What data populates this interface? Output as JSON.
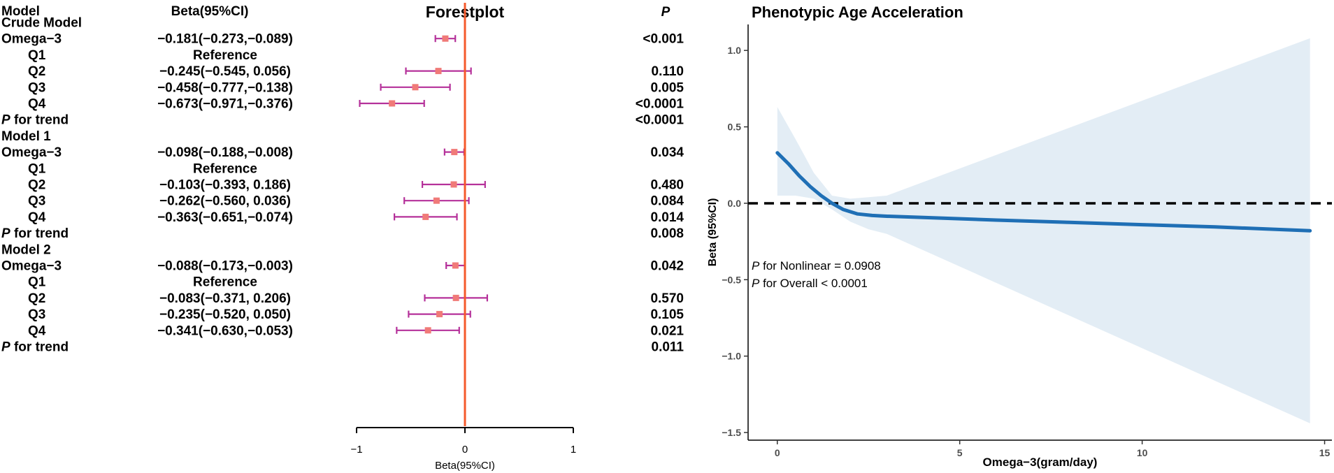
{
  "chart_data": [
    {
      "type": "forest",
      "title": "Forestplot",
      "headers": {
        "model": "Model",
        "beta": "Beta(95%CI)",
        "p": "P"
      },
      "rows": [
        {
          "label": "Crude Model",
          "kind": "group"
        },
        {
          "label": "Omega−3",
          "kind": "main",
          "text": "−0.181(−0.273,−0.089)",
          "p": "<0.001",
          "est": -0.181,
          "lo": -0.273,
          "hi": -0.089
        },
        {
          "label": "Q1",
          "kind": "sub",
          "text": "Reference",
          "p": ""
        },
        {
          "label": "Q2",
          "kind": "sub",
          "text": "−0.245(−0.545, 0.056)",
          "p": "0.110",
          "est": -0.245,
          "lo": -0.545,
          "hi": 0.056
        },
        {
          "label": "Q3",
          "kind": "sub",
          "text": "−0.458(−0.777,−0.138)",
          "p": "0.005",
          "est": -0.458,
          "lo": -0.777,
          "hi": -0.138
        },
        {
          "label": "Q4",
          "kind": "sub",
          "text": "−0.673(−0.971,−0.376)",
          "p": "<0.0001",
          "est": -0.673,
          "lo": -0.971,
          "hi": -0.376
        },
        {
          "label_italic": "P",
          "label": " for trend",
          "kind": "trend",
          "text": "",
          "p": "<0.0001"
        },
        {
          "label": "Model 1",
          "kind": "group"
        },
        {
          "label": "Omega−3",
          "kind": "main",
          "text": "−0.098(−0.188,−0.008)",
          "p": "0.034",
          "est": -0.098,
          "lo": -0.188,
          "hi": -0.008
        },
        {
          "label": "Q1",
          "kind": "sub",
          "text": "Reference",
          "p": ""
        },
        {
          "label": "Q2",
          "kind": "sub",
          "text": "−0.103(−0.393, 0.186)",
          "p": "0.480",
          "est": -0.103,
          "lo": -0.393,
          "hi": 0.186
        },
        {
          "label": "Q3",
          "kind": "sub",
          "text": "−0.262(−0.560, 0.036)",
          "p": "0.084",
          "est": -0.262,
          "lo": -0.56,
          "hi": 0.036
        },
        {
          "label": "Q4",
          "kind": "sub",
          "text": "−0.363(−0.651,−0.074)",
          "p": "0.014",
          "est": -0.363,
          "lo": -0.651,
          "hi": -0.074
        },
        {
          "label_italic": "P",
          "label": " for trend",
          "kind": "trend",
          "text": "",
          "p": "0.008"
        },
        {
          "label": "Model 2",
          "kind": "group"
        },
        {
          "label": "Omega−3",
          "kind": "main",
          "text": "−0.088(−0.173,−0.003)",
          "p": "0.042",
          "est": -0.088,
          "lo": -0.173,
          "hi": -0.003
        },
        {
          "label": "Q1",
          "kind": "sub",
          "text": "Reference",
          "p": ""
        },
        {
          "label": "Q2",
          "kind": "sub",
          "text": "−0.083(−0.371, 0.206)",
          "p": "0.570",
          "est": -0.083,
          "lo": -0.371,
          "hi": 0.206
        },
        {
          "label": "Q3",
          "kind": "sub",
          "text": "−0.235(−0.520, 0.050)",
          "p": "0.105",
          "est": -0.235,
          "lo": -0.52,
          "hi": 0.05
        },
        {
          "label": "Q4",
          "kind": "sub",
          "text": "−0.341(−0.630,−0.053)",
          "p": "0.021",
          "est": -0.341,
          "lo": -0.63,
          "hi": -0.053
        },
        {
          "label_italic": "P",
          "label": " for trend",
          "kind": "trend",
          "text": "",
          "p": "0.011"
        }
      ],
      "xlim": [
        -1,
        1
      ],
      "xticks": [
        -1,
        0,
        1
      ],
      "xtick_labels": [
        "−1",
        "0",
        "1"
      ],
      "xlabel": "Beta(95%CI)",
      "reference_line": 0,
      "colors": {
        "ci": "#b5319a",
        "point": "#f07a78",
        "ref": "#f4592b"
      }
    },
    {
      "type": "line",
      "title": "Phenotypic Age Acceleration",
      "xlabel": "Omega−3(gram/day)",
      "ylabel": "Beta (95%CI)",
      "xlim": [
        -0.8,
        15.2
      ],
      "ylim": [
        -1.55,
        1.17
      ],
      "xticks": [
        0,
        5,
        10,
        15
      ],
      "xtick_labels": [
        "0",
        "5",
        "10",
        "15"
      ],
      "yticks": [
        -1.5,
        -1.0,
        -0.5,
        0.0,
        0.5,
        1.0
      ],
      "ytick_labels": [
        "−1.5",
        "−1.0",
        "−0.5",
        "0.0",
        "0.5",
        "1.0"
      ],
      "reference_line": 0,
      "series": [
        {
          "name": "estimate",
          "x": [
            0,
            0.3,
            0.6,
            0.9,
            1.2,
            1.5,
            1.8,
            2.2,
            2.6,
            3.0,
            4,
            6,
            8,
            10,
            12,
            14.6
          ],
          "y": [
            0.33,
            0.26,
            0.18,
            0.11,
            0.05,
            0.0,
            -0.04,
            -0.07,
            -0.08,
            -0.085,
            -0.093,
            -0.11,
            -0.125,
            -0.14,
            -0.155,
            -0.18
          ]
        },
        {
          "name": "ci_upper",
          "x": [
            0,
            0.5,
            1.0,
            1.5,
            2.0,
            2.5,
            3.0,
            14.6
          ],
          "y": [
            0.63,
            0.42,
            0.2,
            0.05,
            0.03,
            0.04,
            0.05,
            1.08
          ]
        },
        {
          "name": "ci_lower",
          "x": [
            0,
            0.5,
            1.0,
            1.5,
            2.0,
            2.5,
            3.0,
            14.6
          ],
          "y": [
            0.05,
            0.05,
            0.03,
            -0.04,
            -0.12,
            -0.17,
            -0.2,
            -1.44
          ]
        }
      ],
      "annotations": [
        {
          "italic": "P",
          "text": " for Nonlinear = 0.0908"
        },
        {
          "italic": "P",
          "text": " for Overall < 0.0001"
        }
      ],
      "colors": {
        "line": "#1f6fb5",
        "band": "#e3edf5",
        "ref": "#000000"
      }
    }
  ]
}
